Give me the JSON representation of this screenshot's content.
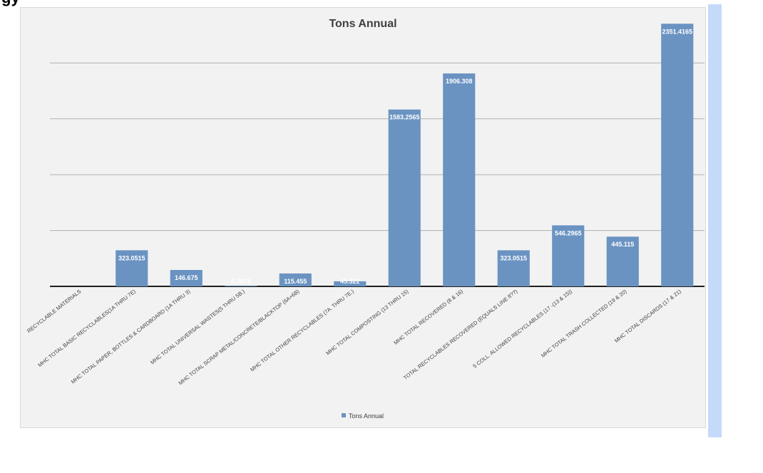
{
  "page": {
    "top_fragment_text": "gy"
  },
  "chart_data": {
    "type": "bar",
    "title": "Tons Annual",
    "xlabel": "",
    "ylabel": "",
    "ylim": [
      0,
      2500
    ],
    "grid": true,
    "legend_position": "bottom",
    "categories": [
      "RECYCLABLE MATERIALS",
      "MHC TOTAL BASIC RECYCLABLES(1A THRU 7E)",
      "MHC TOTAL PAPER, BOTTLES & CARDBOARD (1A THRU 3)",
      "MHC TOTAL UNIVERSAL WASTES(5 THRU 5B.)",
      "MHC TOTAL SCRAP METAL/CONCRETE/BLACKTOP (6A+6B)",
      "MHC TOTAL OTHER RECYCLABLES (7A. THRU 7E.)",
      "MHC TOTAL COMPOSTING (13 THRU 15)",
      "MHC TOTAL RECOVERED (8 & 16)",
      "TOTAL RECYCLABLES RECOVERED (EQUALS LINE 8??)",
      "5 COLL. ALLOWED RECYCLABLES (17 -(13 & 15))",
      "MHC TOTAL TRASH COLLECTED (19 & 20)",
      "MHC TOTAL DISCARDS (17 & 21)"
    ],
    "series": [
      {
        "name": "Tons Annual",
        "color": "#6a93c2",
        "values": [
          null,
          323.0515,
          146.675,
          5.2875,
          115.455,
          45.322,
          1583.2565,
          1906.308,
          323.0515,
          546.2965,
          445.115,
          2351.4165
        ],
        "labels": [
          "",
          "323.0515",
          "146.675",
          "5.2875",
          "115.455",
          "45.322",
          "1583.2565",
          "1906.308",
          "323.0515",
          "546.2965",
          "445.115",
          "2351.4165"
        ]
      }
    ]
  }
}
